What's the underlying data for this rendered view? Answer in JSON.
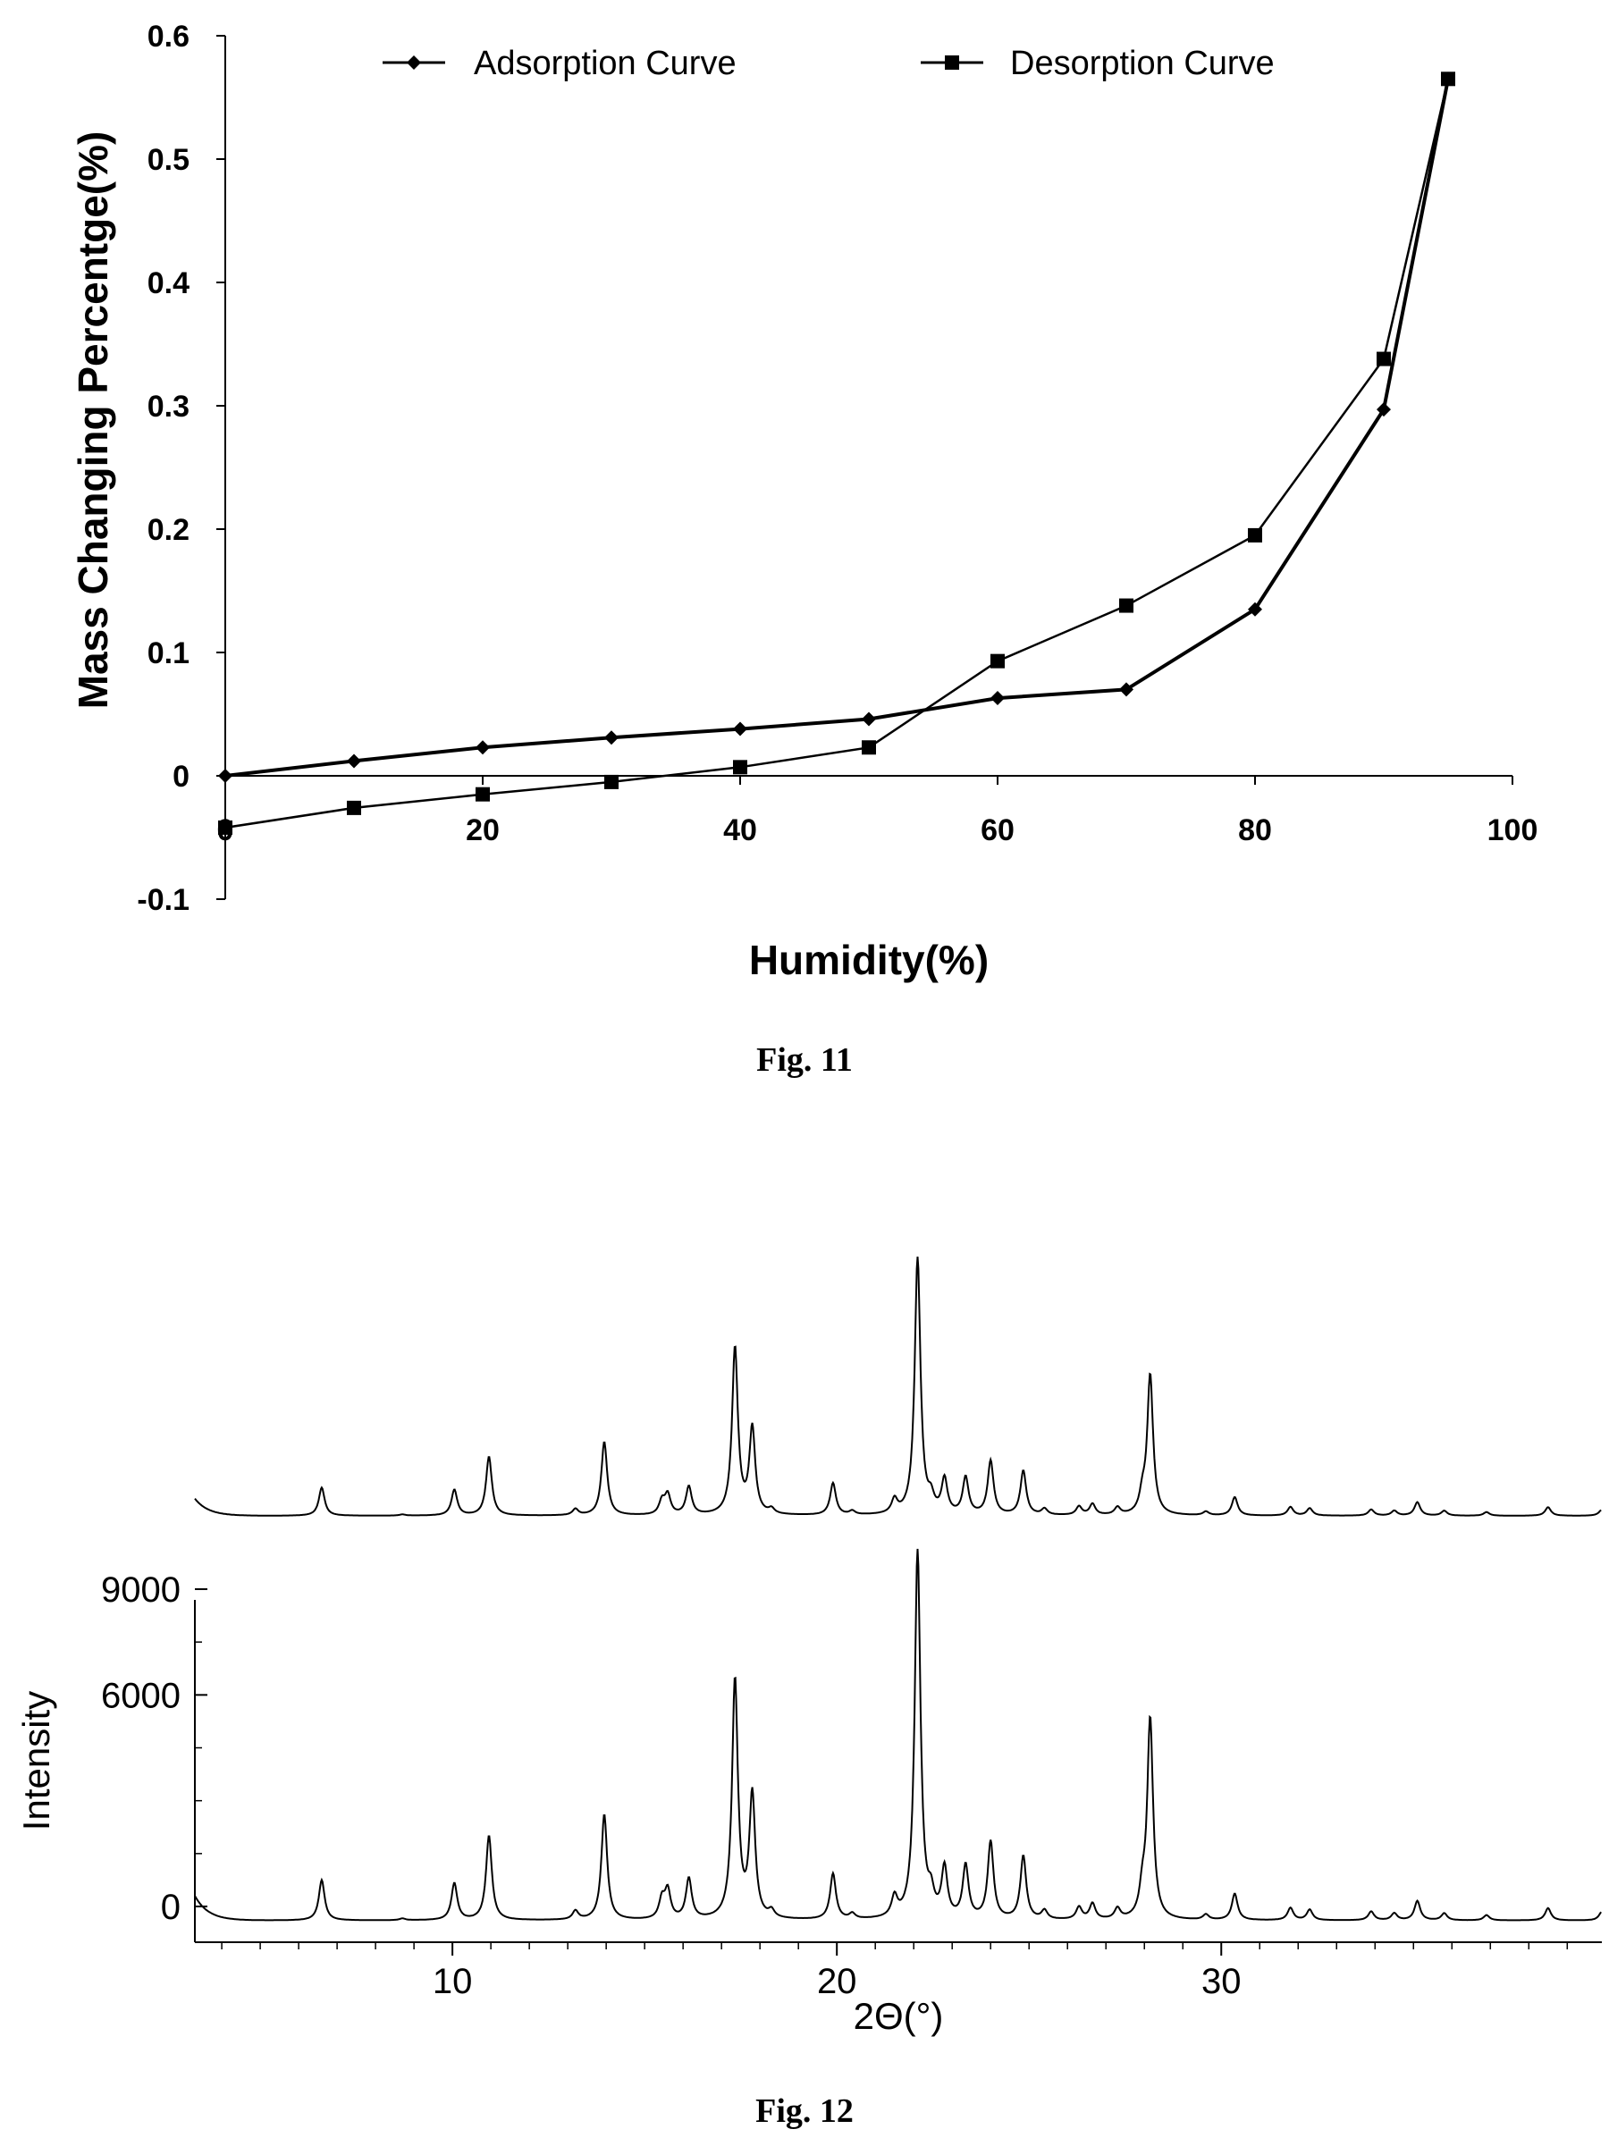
{
  "fig11": {
    "caption": "Fig. 11",
    "chart_data": {
      "type": "line",
      "xlabel": "Humidity(%)",
      "ylabel": "Mass Changing Percentge(%)",
      "xlim": [
        0,
        100
      ],
      "ylim": [
        -0.1,
        0.6
      ],
      "xticks": [
        "0",
        "20",
        "40",
        "60",
        "80",
        "100"
      ],
      "yticks": [
        "-0.1",
        "0",
        "0.1",
        "0.2",
        "0.3",
        "0.4",
        "0.5",
        "0.6"
      ],
      "legend_position": "top",
      "series": [
        {
          "name": "Adsorption Curve",
          "marker": "diamond",
          "x": [
            0,
            10,
            20,
            30,
            40,
            50,
            60,
            70,
            80,
            90,
            95
          ],
          "y": [
            0.0,
            0.012,
            0.023,
            0.031,
            0.038,
            0.046,
            0.063,
            0.07,
            0.135,
            0.297,
            0.565
          ]
        },
        {
          "name": "Desorption Curve",
          "marker": "square",
          "x": [
            95,
            90,
            80,
            70,
            60,
            50,
            40,
            30,
            20,
            10,
            0
          ],
          "y": [
            0.565,
            0.338,
            0.195,
            0.138,
            0.093,
            0.023,
            0.007,
            -0.005,
            -0.015,
            -0.026,
            -0.042
          ]
        }
      ]
    }
  },
  "fig12": {
    "caption": "Fig. 12",
    "chart_data": {
      "type": "line",
      "xlabel": "2Θ(°)",
      "ylabel": "Intensity",
      "xlim": [
        3.3,
        39.9
      ],
      "ylim": [
        -700,
        10500
      ],
      "xticks": [
        "10",
        "20",
        "30"
      ],
      "yticks": [
        "0",
        "6000",
        "9000"
      ],
      "baseline": -400,
      "peaks": [
        {
          "x": 6.6,
          "y": 750
        },
        {
          "x": 8.7,
          "y": -350
        },
        {
          "x": 10.05,
          "y": 650
        },
        {
          "x": 10.95,
          "y": 2000
        },
        {
          "x": 13.2,
          "y": -150
        },
        {
          "x": 13.95,
          "y": 2600
        },
        {
          "x": 15.45,
          "y": 150
        },
        {
          "x": 15.6,
          "y": 400
        },
        {
          "x": 16.15,
          "y": 750
        },
        {
          "x": 17.35,
          "y": 6400
        },
        {
          "x": 17.8,
          "y": 3100
        },
        {
          "x": 18.3,
          "y": -200
        },
        {
          "x": 19.9,
          "y": 900
        },
        {
          "x": 20.4,
          "y": -250
        },
        {
          "x": 21.5,
          "y": 160
        },
        {
          "x": 22.1,
          "y": 10050
        },
        {
          "x": 22.45,
          "y": 150
        },
        {
          "x": 22.8,
          "y": 1000
        },
        {
          "x": 23.35,
          "y": 1100
        },
        {
          "x": 24.0,
          "y": 1800
        },
        {
          "x": 24.85,
          "y": 1400
        },
        {
          "x": 25.4,
          "y": -150
        },
        {
          "x": 26.3,
          "y": -50
        },
        {
          "x": 26.65,
          "y": 50
        },
        {
          "x": 27.3,
          "y": -100
        },
        {
          "x": 27.95,
          "y": 300
        },
        {
          "x": 28.15,
          "y": 5300
        },
        {
          "x": 29.6,
          "y": -250
        },
        {
          "x": 30.35,
          "y": 350
        },
        {
          "x": 31.8,
          "y": -50
        },
        {
          "x": 32.3,
          "y": -100
        },
        {
          "x": 33.9,
          "y": -150
        },
        {
          "x": 34.5,
          "y": -200
        },
        {
          "x": 35.1,
          "y": 150
        },
        {
          "x": 35.8,
          "y": -200
        },
        {
          "x": 36.9,
          "y": -250
        },
        {
          "x": 38.5,
          "y": -50
        },
        {
          "x": 39.9,
          "y": -150
        }
      ]
    }
  }
}
